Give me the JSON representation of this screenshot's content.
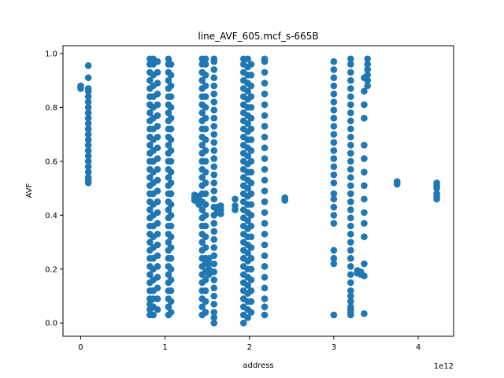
{
  "chart_data": {
    "type": "scatter",
    "title": "line_AVF_605.mcf_s-665B",
    "xlabel": "address",
    "ylabel": "AVF",
    "x_offset_label": "1e12",
    "xlim": [
      -0.21,
      4.42
    ],
    "ylim": [
      -0.049,
      1.029
    ],
    "x_ticks": [
      0,
      1,
      2,
      3,
      4
    ],
    "x_tick_labels": [
      "0",
      "1",
      "2",
      "3",
      "4"
    ],
    "y_ticks": [
      0.0,
      0.2,
      0.4,
      0.6,
      0.8,
      1.0
    ],
    "y_tick_labels": [
      "0.0",
      "0.2",
      "0.4",
      "0.6",
      "0.8",
      "1.0"
    ],
    "grid": false,
    "marker_color": "#1f77b4",
    "x_scale": "x values are in units of 1e12",
    "series": [
      {
        "columns": [
          {
            "x": 0.0,
            "y": [
              0.87,
              0.875,
              0.88
            ]
          },
          {
            "x": 0.09,
            "y": [
              0.52,
              0.53,
              0.54,
              0.56,
              0.58,
              0.6,
              0.62,
              0.64,
              0.66,
              0.68,
              0.7,
              0.72,
              0.74,
              0.76,
              0.78,
              0.8,
              0.82,
              0.84,
              0.86,
              0.87,
              0.91,
              0.955
            ]
          },
          {
            "x": 0.82,
            "y": [
              0.03,
              0.05,
              0.07,
              0.09,
              0.12,
              0.15,
              0.18,
              0.21,
              0.24,
              0.27,
              0.3,
              0.33,
              0.36,
              0.39,
              0.42,
              0.45,
              0.48,
              0.51,
              0.54,
              0.57,
              0.6,
              0.63,
              0.66,
              0.69,
              0.72,
              0.75,
              0.78,
              0.81,
              0.84,
              0.87,
              0.9,
              0.93,
              0.96,
              0.98
            ]
          },
          {
            "x": 0.86,
            "y": [
              0.03,
              0.06,
              0.09,
              0.12,
              0.16,
              0.2,
              0.24,
              0.28,
              0.32,
              0.36,
              0.4,
              0.44,
              0.48,
              0.52,
              0.56,
              0.6,
              0.64,
              0.68,
              0.72,
              0.76,
              0.8,
              0.84,
              0.88,
              0.92,
              0.96,
              0.98
            ]
          },
          {
            "x": 0.91,
            "y": [
              0.05,
              0.09,
              0.13,
              0.17,
              0.21,
              0.25,
              0.29,
              0.33,
              0.37,
              0.41,
              0.45,
              0.49,
              0.53,
              0.57,
              0.61,
              0.65,
              0.69,
              0.73,
              0.77,
              0.81,
              0.85,
              0.89,
              0.93,
              0.97
            ]
          },
          {
            "x": 1.04,
            "y": [
              0.03,
              0.06,
              0.09,
              0.12,
              0.15,
              0.18,
              0.21,
              0.24,
              0.27,
              0.3,
              0.33,
              0.36,
              0.39,
              0.42,
              0.45,
              0.48,
              0.51,
              0.54,
              0.57,
              0.6,
              0.63,
              0.66,
              0.69,
              0.72,
              0.75,
              0.78,
              0.81,
              0.84,
              0.87,
              0.9,
              0.93,
              0.96,
              0.98
            ]
          },
          {
            "x": 1.07,
            "y": [
              0.04,
              0.08,
              0.12,
              0.16,
              0.2,
              0.24,
              0.28,
              0.32,
              0.36,
              0.4,
              0.44,
              0.48,
              0.52,
              0.56,
              0.6,
              0.64,
              0.68,
              0.72,
              0.76,
              0.8,
              0.84,
              0.88,
              0.92,
              0.96
            ]
          },
          {
            "x": 1.35,
            "y": [
              0.455,
              0.465,
              0.475
            ]
          },
          {
            "x": 1.4,
            "y": [
              0.44,
              0.455,
              0.47
            ]
          },
          {
            "x": 1.44,
            "y": [
              0.03,
              0.06,
              0.09,
              0.12,
              0.15,
              0.18,
              0.21,
              0.24,
              0.27,
              0.3,
              0.33,
              0.36,
              0.39,
              0.42,
              0.45,
              0.48,
              0.51,
              0.54,
              0.57,
              0.6,
              0.63,
              0.66,
              0.69,
              0.72,
              0.75,
              0.78,
              0.81,
              0.84,
              0.87,
              0.9,
              0.93,
              0.96,
              0.98
            ]
          },
          {
            "x": 1.48,
            "y": [
              0.04,
              0.08,
              0.12,
              0.16,
              0.19,
              0.22,
              0.24,
              0.28,
              0.32,
              0.36,
              0.4,
              0.44,
              0.48,
              0.52,
              0.56,
              0.6,
              0.64,
              0.68,
              0.72,
              0.76,
              0.8,
              0.84,
              0.88,
              0.92,
              0.96,
              0.98
            ]
          },
          {
            "x": 1.52,
            "y": [
              0.18,
              0.2,
              0.22,
              0.24
            ]
          },
          {
            "x": 1.58,
            "y": [
              0.0,
              0.02,
              0.04,
              0.07,
              0.1,
              0.13,
              0.16,
              0.19,
              0.22,
              0.25,
              0.28,
              0.31,
              0.34,
              0.37,
              0.4,
              0.43,
              0.46,
              0.49,
              0.52,
              0.55,
              0.58,
              0.61,
              0.64,
              0.67,
              0.7,
              0.73,
              0.76,
              0.79,
              0.82,
              0.85,
              0.88,
              0.91,
              0.94,
              0.97,
              0.98
            ]
          },
          {
            "x": 1.62,
            "y": [
              0.41,
              0.42,
              0.43
            ]
          },
          {
            "x": 1.66,
            "y": [
              0.405,
              0.42,
              0.435
            ]
          },
          {
            "x": 1.83,
            "y": [
              0.42,
              0.435,
              0.46
            ]
          },
          {
            "x": 1.93,
            "y": [
              0.0,
              0.03,
              0.06,
              0.09,
              0.12,
              0.15,
              0.18,
              0.21,
              0.24,
              0.27,
              0.3,
              0.33,
              0.36,
              0.39,
              0.42,
              0.45,
              0.48,
              0.51,
              0.54,
              0.57,
              0.6,
              0.63,
              0.66,
              0.69,
              0.72,
              0.75,
              0.78,
              0.81,
              0.84,
              0.87,
              0.9,
              0.93,
              0.96,
              0.98
            ]
          },
          {
            "x": 1.98,
            "y": [
              0.02,
              0.05,
              0.08,
              0.11,
              0.14,
              0.17,
              0.2,
              0.23,
              0.26,
              0.29,
              0.32,
              0.35,
              0.38,
              0.41,
              0.44,
              0.47,
              0.5,
              0.53,
              0.56,
              0.59,
              0.62,
              0.65,
              0.68,
              0.71,
              0.74,
              0.77,
              0.8,
              0.83,
              0.86,
              0.89,
              0.92,
              0.95,
              0.98
            ]
          },
          {
            "x": 2.02,
            "y": [
              0.04,
              0.08,
              0.12,
              0.16,
              0.2,
              0.24,
              0.28,
              0.32,
              0.36,
              0.4,
              0.44,
              0.48,
              0.52,
              0.56,
              0.6,
              0.64,
              0.68,
              0.72,
              0.76,
              0.8,
              0.84,
              0.88,
              0.92,
              0.96
            ]
          },
          {
            "x": 2.18,
            "y": [
              0.03,
              0.06,
              0.09,
              0.13,
              0.17,
              0.21,
              0.25,
              0.29,
              0.33,
              0.37,
              0.41,
              0.45,
              0.49,
              0.53,
              0.57,
              0.61,
              0.65,
              0.69,
              0.73,
              0.77,
              0.81,
              0.85,
              0.89,
              0.93,
              0.97,
              0.98
            ]
          },
          {
            "x": 2.42,
            "y": [
              0.455,
              0.46,
              0.465
            ]
          },
          {
            "x": 3.0,
            "y": [
              0.03,
              0.22,
              0.24,
              0.27,
              0.37,
              0.4,
              0.43,
              0.46,
              0.48,
              0.52,
              0.55,
              0.58,
              0.61,
              0.64,
              0.67,
              0.7,
              0.73,
              0.76,
              0.79,
              0.82,
              0.85,
              0.88,
              0.91,
              0.94,
              0.97
            ]
          },
          {
            "x": 3.2,
            "y": [
              0.03,
              0.04,
              0.05,
              0.06,
              0.08,
              0.1,
              0.12,
              0.15,
              0.18,
              0.21,
              0.24,
              0.27,
              0.3,
              0.33,
              0.36,
              0.39,
              0.42,
              0.45,
              0.48,
              0.51,
              0.54,
              0.57,
              0.6,
              0.63,
              0.66,
              0.69,
              0.72,
              0.75,
              0.78,
              0.81,
              0.84,
              0.87,
              0.9,
              0.93,
              0.96,
              0.98
            ]
          },
          {
            "x": 3.28,
            "y": [
              0.185,
              0.19,
              0.195
            ]
          },
          {
            "x": 3.32,
            "y": [
              0.18,
              0.185,
              0.19
            ]
          },
          {
            "x": 3.36,
            "y": [
              0.035,
              0.175,
              0.22,
              0.32,
              0.37,
              0.41,
              0.46,
              0.51,
              0.56,
              0.61,
              0.66,
              0.76,
              0.81,
              0.86,
              0.91
            ]
          },
          {
            "x": 3.4,
            "y": [
              0.88,
              0.9,
              0.92,
              0.94,
              0.96,
              0.98
            ]
          },
          {
            "x": 3.75,
            "y": [
              0.515,
              0.52,
              0.525
            ]
          },
          {
            "x": 4.22,
            "y": [
              0.46,
              0.47,
              0.48,
              0.5,
              0.51,
              0.52
            ]
          }
        ]
      }
    ]
  }
}
